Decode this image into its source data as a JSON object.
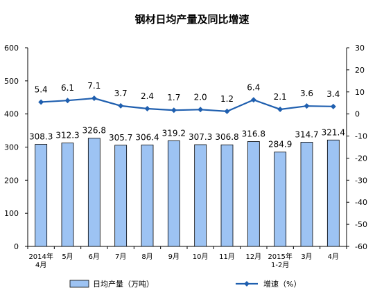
{
  "chart_data": {
    "type": "bar",
    "title": "钢材日均产量及同比增速",
    "categories": [
      [
        "2014年",
        "4月"
      ],
      [
        "5月"
      ],
      [
        "6月"
      ],
      [
        "7月"
      ],
      [
        "8月"
      ],
      [
        "9月"
      ],
      [
        "10月"
      ],
      [
        "11月"
      ],
      [
        "12月"
      ],
      [
        "2015年",
        "1-2月"
      ],
      [
        "3月"
      ],
      [
        "4月"
      ]
    ],
    "series": [
      {
        "name": "日均产量（万吨）",
        "type": "bar",
        "axis": "left",
        "color": "#9DC3F3",
        "values": [
          308.3,
          312.3,
          326.8,
          305.7,
          306.4,
          319.2,
          307.3,
          306.8,
          316.8,
          284.9,
          314.7,
          321.4
        ],
        "labels": [
          "308.3",
          "312.3",
          "326.8",
          "305.7",
          "306.4",
          "319.2",
          "307.3",
          "306.8",
          "316.8",
          "284.9",
          "314.7",
          "321.4"
        ]
      },
      {
        "name": "增速（%）",
        "type": "line",
        "axis": "right",
        "color": "#1F5FAF",
        "values": [
          5.4,
          6.1,
          7.1,
          3.7,
          2.4,
          1.7,
          2.0,
          1.2,
          6.4,
          2.1,
          3.6,
          3.4
        ],
        "labels": [
          "5.4",
          "6.1",
          "7.1",
          "3.7",
          "2.4",
          "1.7",
          "2.0",
          "1.2",
          "6.4",
          "2.1",
          "3.6",
          "3.4"
        ]
      }
    ],
    "yleft": {
      "min": 0,
      "max": 600,
      "step": 100
    },
    "yright": {
      "min": -60,
      "max": 30,
      "step": 10
    },
    "grid": false,
    "legend_position": "bottom"
  }
}
